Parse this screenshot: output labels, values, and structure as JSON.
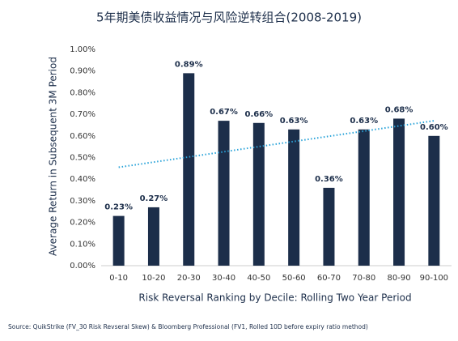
{
  "chart_data": {
    "type": "bar",
    "title": "5年期美债收益情况与风险逆转组合(2008-2019)",
    "x_label": "Risk Reversal Ranking by Decile: Rolling Two Year Period",
    "y_label": "Average Return in Subsequent 3M Period",
    "source": "Source: QuikStrike (FV_30 Risk Revseral Skew) & Bloomberg Professional (FV1, Rolled 10D before expiry ratio method)",
    "categories": [
      "0-10",
      "10-20",
      "20-30",
      "30-40",
      "40-50",
      "50-60",
      "60-70",
      "70-80",
      "80-90",
      "90-100"
    ],
    "values": [
      0.23,
      0.27,
      0.89,
      0.67,
      0.66,
      0.63,
      0.36,
      0.63,
      0.68,
      0.6
    ],
    "value_labels": [
      "0.23%",
      "0.27%",
      "0.89%",
      "0.67%",
      "0.66%",
      "0.63%",
      "0.36%",
      "0.63%",
      "0.68%",
      "0.60%"
    ],
    "color": "#1c2e4a",
    "trend": {
      "start": 0.455,
      "end": 0.67,
      "color": "#29a3d9"
    },
    "ylim": [
      0,
      1
    ],
    "yticks": [
      {
        "value": 0,
        "label": "0.00%"
      },
      {
        "value": 0.1,
        "label": "0.10%"
      },
      {
        "value": 0.2,
        "label": "0.20%"
      },
      {
        "value": 0.3,
        "label": "0.30%"
      },
      {
        "value": 0.4,
        "label": "0.40%"
      },
      {
        "value": 0.5,
        "label": "0.50%"
      },
      {
        "value": 0.6,
        "label": "0.60%"
      },
      {
        "value": 0.7,
        "label": "0.70%"
      },
      {
        "value": 0.8,
        "label": "0.80%"
      },
      {
        "value": 0.9,
        "label": "0.90%"
      },
      {
        "value": 1,
        "label": "1.00%"
      }
    ]
  }
}
